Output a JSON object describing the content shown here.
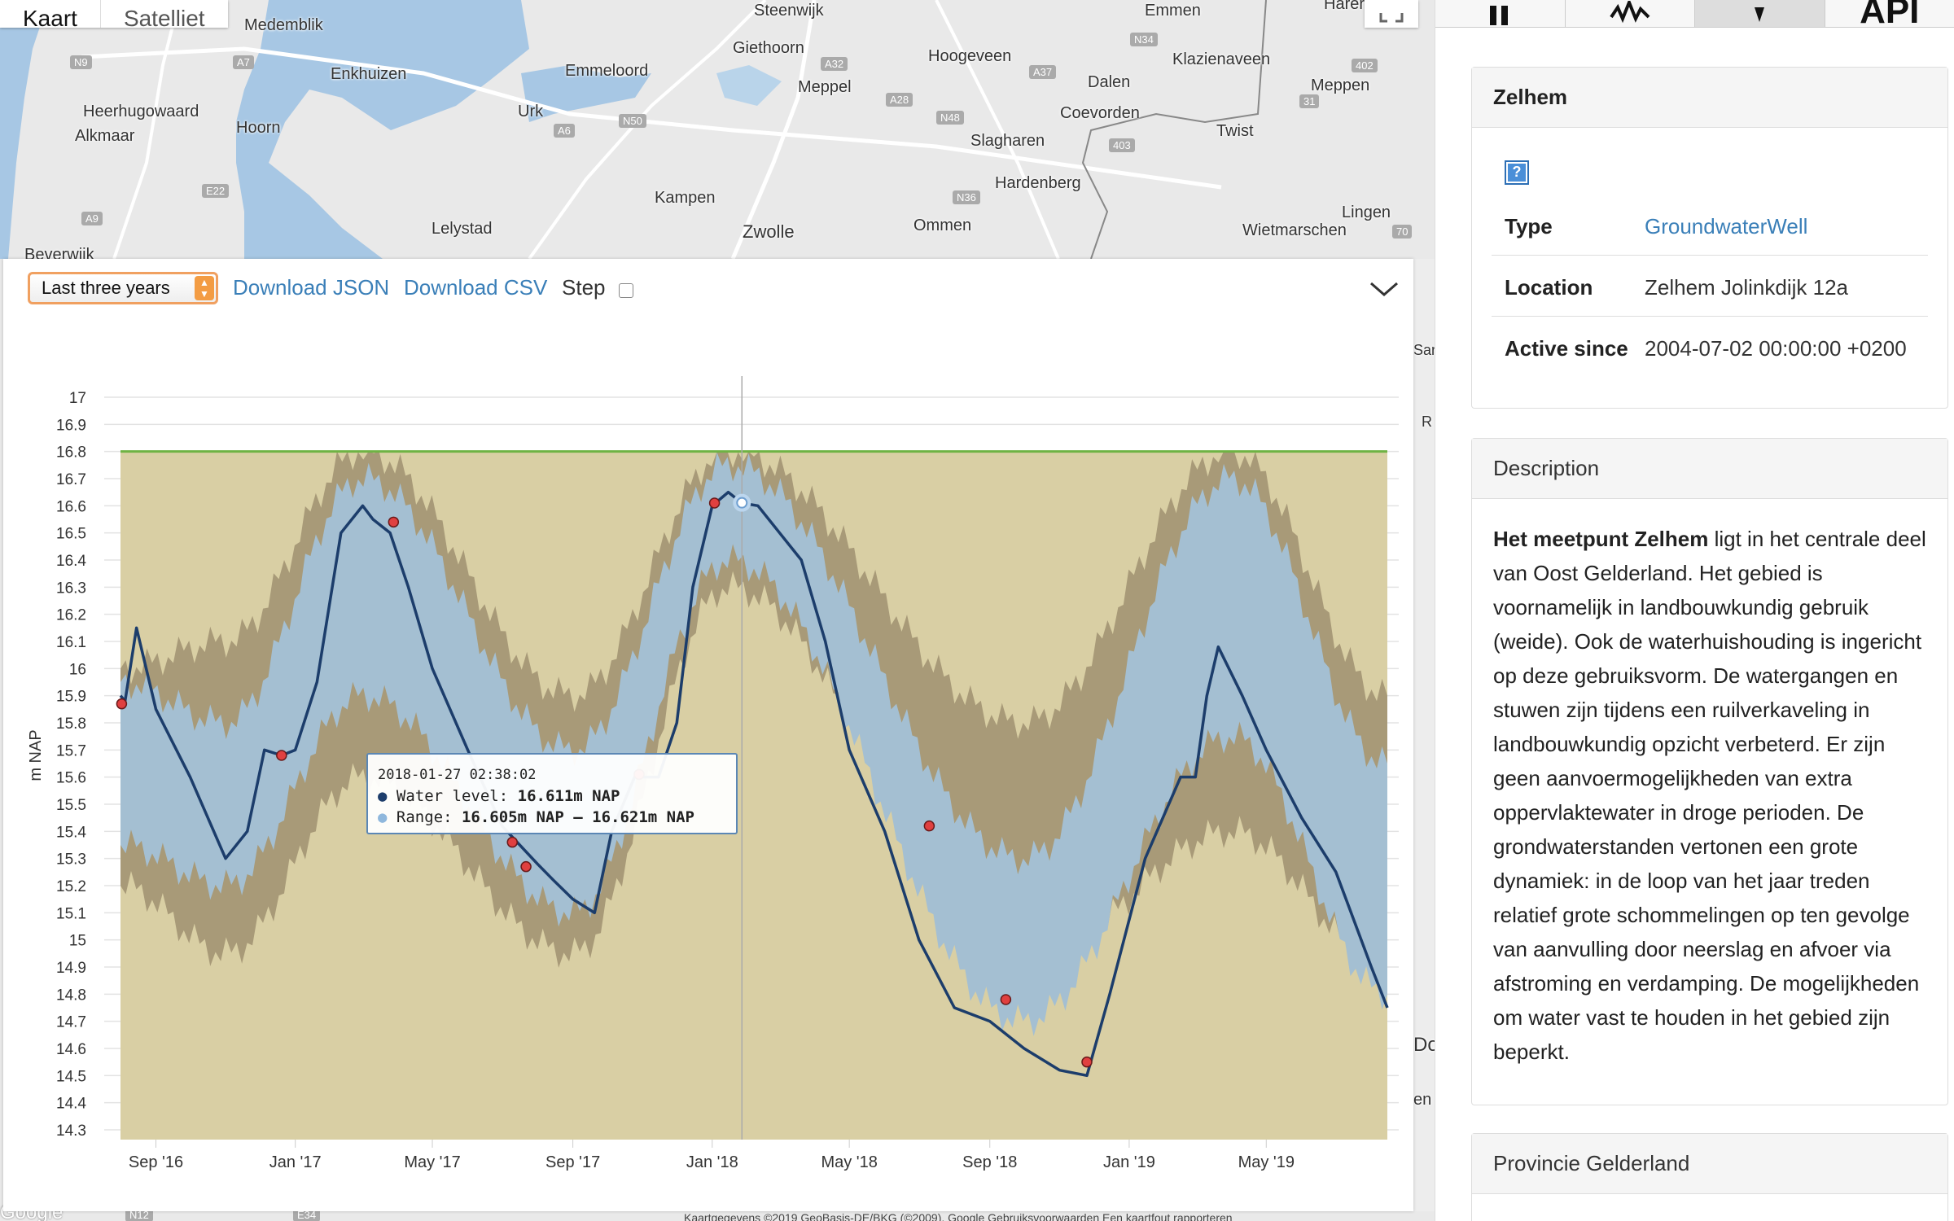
{
  "map": {
    "tabs": [
      "Kaart",
      "Satelliet"
    ],
    "places": [
      {
        "name": "Medemblik"
      },
      {
        "name": "Steenwijk"
      },
      {
        "name": "Emmen"
      },
      {
        "name": "Harer"
      },
      {
        "name": "Giethoorn"
      },
      {
        "name": "Hoogeveen"
      },
      {
        "name": "Klazienaveen"
      },
      {
        "name": "Enkhuizen"
      },
      {
        "name": "Emmeloord"
      },
      {
        "name": "Meppel"
      },
      {
        "name": "Dalen"
      },
      {
        "name": "Meppen"
      },
      {
        "name": "Heerhugowaard"
      },
      {
        "name": "Urk"
      },
      {
        "name": "Coevorden"
      },
      {
        "name": "Alkmaar"
      },
      {
        "name": "Hoorn"
      },
      {
        "name": "Twist"
      },
      {
        "name": "Slagharen"
      },
      {
        "name": "Hardenberg"
      },
      {
        "name": "Kampen"
      },
      {
        "name": "Lingen"
      },
      {
        "name": "Ommen"
      },
      {
        "name": "Beverwijk"
      },
      {
        "name": "Lelystad"
      },
      {
        "name": "Zwolle"
      },
      {
        "name": "Wietmarschen"
      },
      {
        "name": "San"
      },
      {
        "name": "R"
      },
      {
        "name": "Do"
      },
      {
        "name": "en"
      }
    ],
    "roads": [
      "N9",
      "A7",
      "N34",
      "402",
      "A32",
      "A37",
      "31",
      "A6",
      "N50",
      "A28",
      "N48",
      "403",
      "E22",
      "A9",
      "N36",
      "70",
      "N12",
      "E34"
    ],
    "footer": "Kaartgegevens ©2019 GeoBasis-DE/BKG (©2009), Google   Gebruiksvoorwaarden   Een kaartfout rapporteren",
    "google": "Google"
  },
  "toolbar": {
    "range_selected": "Last three years",
    "download_json": "Download JSON",
    "download_csv": "Download CSV",
    "step_label": "Step"
  },
  "tooltip": {
    "date": "2018-01-27 02:38:02",
    "water_label": "Water level: ",
    "water_value": "16.611m NAP",
    "range_label": "Range: ",
    "range_value": "16.605m NAP – 16.621m NAP"
  },
  "colors": {
    "plot_background": "#d9cfa4",
    "band_outer": "#a89a78",
    "band_inner": "#a4bfd2",
    "water_line": "#1c3d6b",
    "threshold_line": "#6fb344",
    "marker": "#e04040"
  },
  "chart_data": {
    "type": "line",
    "ylabel": "m NAP",
    "ylim": [
      14.3,
      17
    ],
    "y_ticks": [
      17,
      16.9,
      16.8,
      16.7,
      16.6,
      16.5,
      16.4,
      16.3,
      16.2,
      16.1,
      16,
      15.9,
      15.8,
      15.7,
      15.6,
      15.5,
      15.4,
      15.3,
      15.2,
      15.1,
      15,
      14.9,
      14.8,
      14.7,
      14.6,
      14.5,
      14.4,
      14.3
    ],
    "x_range": [
      "2016-08-01",
      "2019-08-15"
    ],
    "x_ticks": [
      {
        "date": "2016-09-01",
        "label": "Sep '16"
      },
      {
        "date": "2017-01-01",
        "label": "Jan '17"
      },
      {
        "date": "2017-05-01",
        "label": "May '17"
      },
      {
        "date": "2017-09-01",
        "label": "Sep '17"
      },
      {
        "date": "2018-01-01",
        "label": "Jan '18"
      },
      {
        "date": "2018-05-01",
        "label": "May '18"
      },
      {
        "date": "2018-09-01",
        "label": "Sep '18"
      },
      {
        "date": "2019-01-01",
        "label": "Jan '19"
      },
      {
        "date": "2019-05-01",
        "label": "May '19"
      }
    ],
    "threshold": 16.8,
    "crosshair_date": "2018-01-27",
    "series": [
      {
        "name": "Water level",
        "x": [
          "2016-08-01",
          "2016-08-05",
          "2016-08-15",
          "2016-09-01",
          "2016-10-01",
          "2016-11-01",
          "2016-11-20",
          "2016-12-05",
          "2016-12-20",
          "2017-01-01",
          "2017-01-20",
          "2017-02-10",
          "2017-03-01",
          "2017-03-10",
          "2017-03-25",
          "2017-04-10",
          "2017-05-01",
          "2017-06-01",
          "2017-07-01",
          "2017-08-01",
          "2017-08-15",
          "2017-09-01",
          "2017-09-20",
          "2017-10-05",
          "2017-10-25",
          "2017-11-15",
          "2017-12-01",
          "2017-12-15",
          "2018-01-01",
          "2018-01-15",
          "2018-01-27",
          "2018-02-10",
          "2018-03-01",
          "2018-03-20",
          "2018-04-10",
          "2018-05-01",
          "2018-06-01",
          "2018-07-01",
          "2018-08-01",
          "2018-09-01",
          "2018-10-01",
          "2018-11-01",
          "2018-11-25",
          "2018-12-15",
          "2019-01-15",
          "2019-02-15",
          "2019-02-28",
          "2019-03-10",
          "2019-03-20",
          "2019-04-10",
          "2019-05-01",
          "2019-06-01",
          "2019-07-01",
          "2019-08-01",
          "2019-08-15"
        ],
        "y": [
          15.9,
          15.88,
          16.15,
          15.85,
          15.6,
          15.3,
          15.4,
          15.7,
          15.68,
          15.7,
          15.95,
          16.5,
          16.6,
          16.55,
          16.5,
          16.3,
          16.0,
          15.7,
          15.42,
          15.28,
          15.22,
          15.15,
          15.1,
          15.4,
          15.6,
          15.6,
          15.8,
          16.3,
          16.6,
          16.65,
          16.61,
          16.6,
          16.5,
          16.4,
          16.1,
          15.7,
          15.4,
          15.0,
          14.75,
          14.7,
          14.6,
          14.52,
          14.5,
          14.8,
          15.3,
          15.6,
          15.6,
          15.9,
          16.08,
          15.9,
          15.7,
          15.45,
          15.25,
          14.9,
          14.75
        ]
      },
      {
        "name": "Range (inner)",
        "x": [
          "2016-08-01",
          "2016-11-01",
          "2017-03-01",
          "2017-09-01",
          "2018-01-15",
          "2018-10-01",
          "2019-04-01",
          "2019-08-15"
        ],
        "upper": [
          15.95,
          15.8,
          16.7,
          15.7,
          16.75,
          15.3,
          16.7,
          15.65
        ],
        "lower": [
          15.35,
          15.2,
          15.9,
          15.1,
          16.4,
          14.7,
          15.75,
          14.8
        ]
      },
      {
        "name": "Range (outer)",
        "x": [
          "2016-08-01",
          "2016-11-01",
          "2017-03-01",
          "2017-09-01",
          "2018-01-15",
          "2018-10-01",
          "2019-04-01",
          "2019-08-15"
        ],
        "upper": [
          16.0,
          16.1,
          16.8,
          15.9,
          16.8,
          15.8,
          16.8,
          15.9
        ],
        "lower": [
          15.2,
          14.95,
          15.6,
          14.95,
          16.3,
          14.9,
          15.4,
          14.9
        ]
      }
    ],
    "markers": [
      {
        "x": "2016-08-02",
        "y": 15.87
      },
      {
        "x": "2016-12-20",
        "y": 15.68
      },
      {
        "x": "2017-03-28",
        "y": 16.54
      },
      {
        "x": "2017-07-10",
        "y": 15.36
      },
      {
        "x": "2017-07-22",
        "y": 15.27
      },
      {
        "x": "2017-10-29",
        "y": 15.61
      },
      {
        "x": "2018-01-03",
        "y": 16.61
      },
      {
        "x": "2018-07-10",
        "y": 15.42
      },
      {
        "x": "2018-09-15",
        "y": 14.78
      },
      {
        "x": "2018-11-25",
        "y": 14.55
      }
    ],
    "highlight_point": {
      "x": "2018-01-27",
      "y": 16.611
    }
  },
  "sidebar": {
    "tabs": [
      "",
      "",
      "",
      "API"
    ],
    "station": {
      "title": "Zelhem",
      "rows": [
        {
          "key": "Type",
          "value": "GroundwaterWell"
        },
        {
          "key": "Location",
          "value": "Zelhem Jolinkdijk 12a"
        },
        {
          "key": "Active since",
          "value": "2004-07-02 00:00:00 +0200"
        }
      ]
    },
    "description": {
      "title": "Description",
      "lead": "Het meetpunt Zelhem",
      "body": " ligt in het centrale deel van Oost Gelderland. Het gebied is voornamelijk in landbouwkundig gebruik (weide). Ook de waterhuishouding is ingericht op deze gebruiksvorm. De watergangen en stuwen zijn tijdens een ruilverkaveling in landbouwkundig opzicht verbeterd. Er zijn geen aanvoermogelijkheden van extra oppervlaktewater in droge perioden. De grondwaterstanden vertonen een grote dynamiek: in de loop van het jaar treden relatief grote schommelingen op ten gevolge van aanvulling door neerslag en afvoer via afstroming en verdamping. De mogelijkheden om water vast te houden in het gebied zijn beperkt."
    },
    "province": {
      "title": "Provincie Gelderland"
    }
  }
}
